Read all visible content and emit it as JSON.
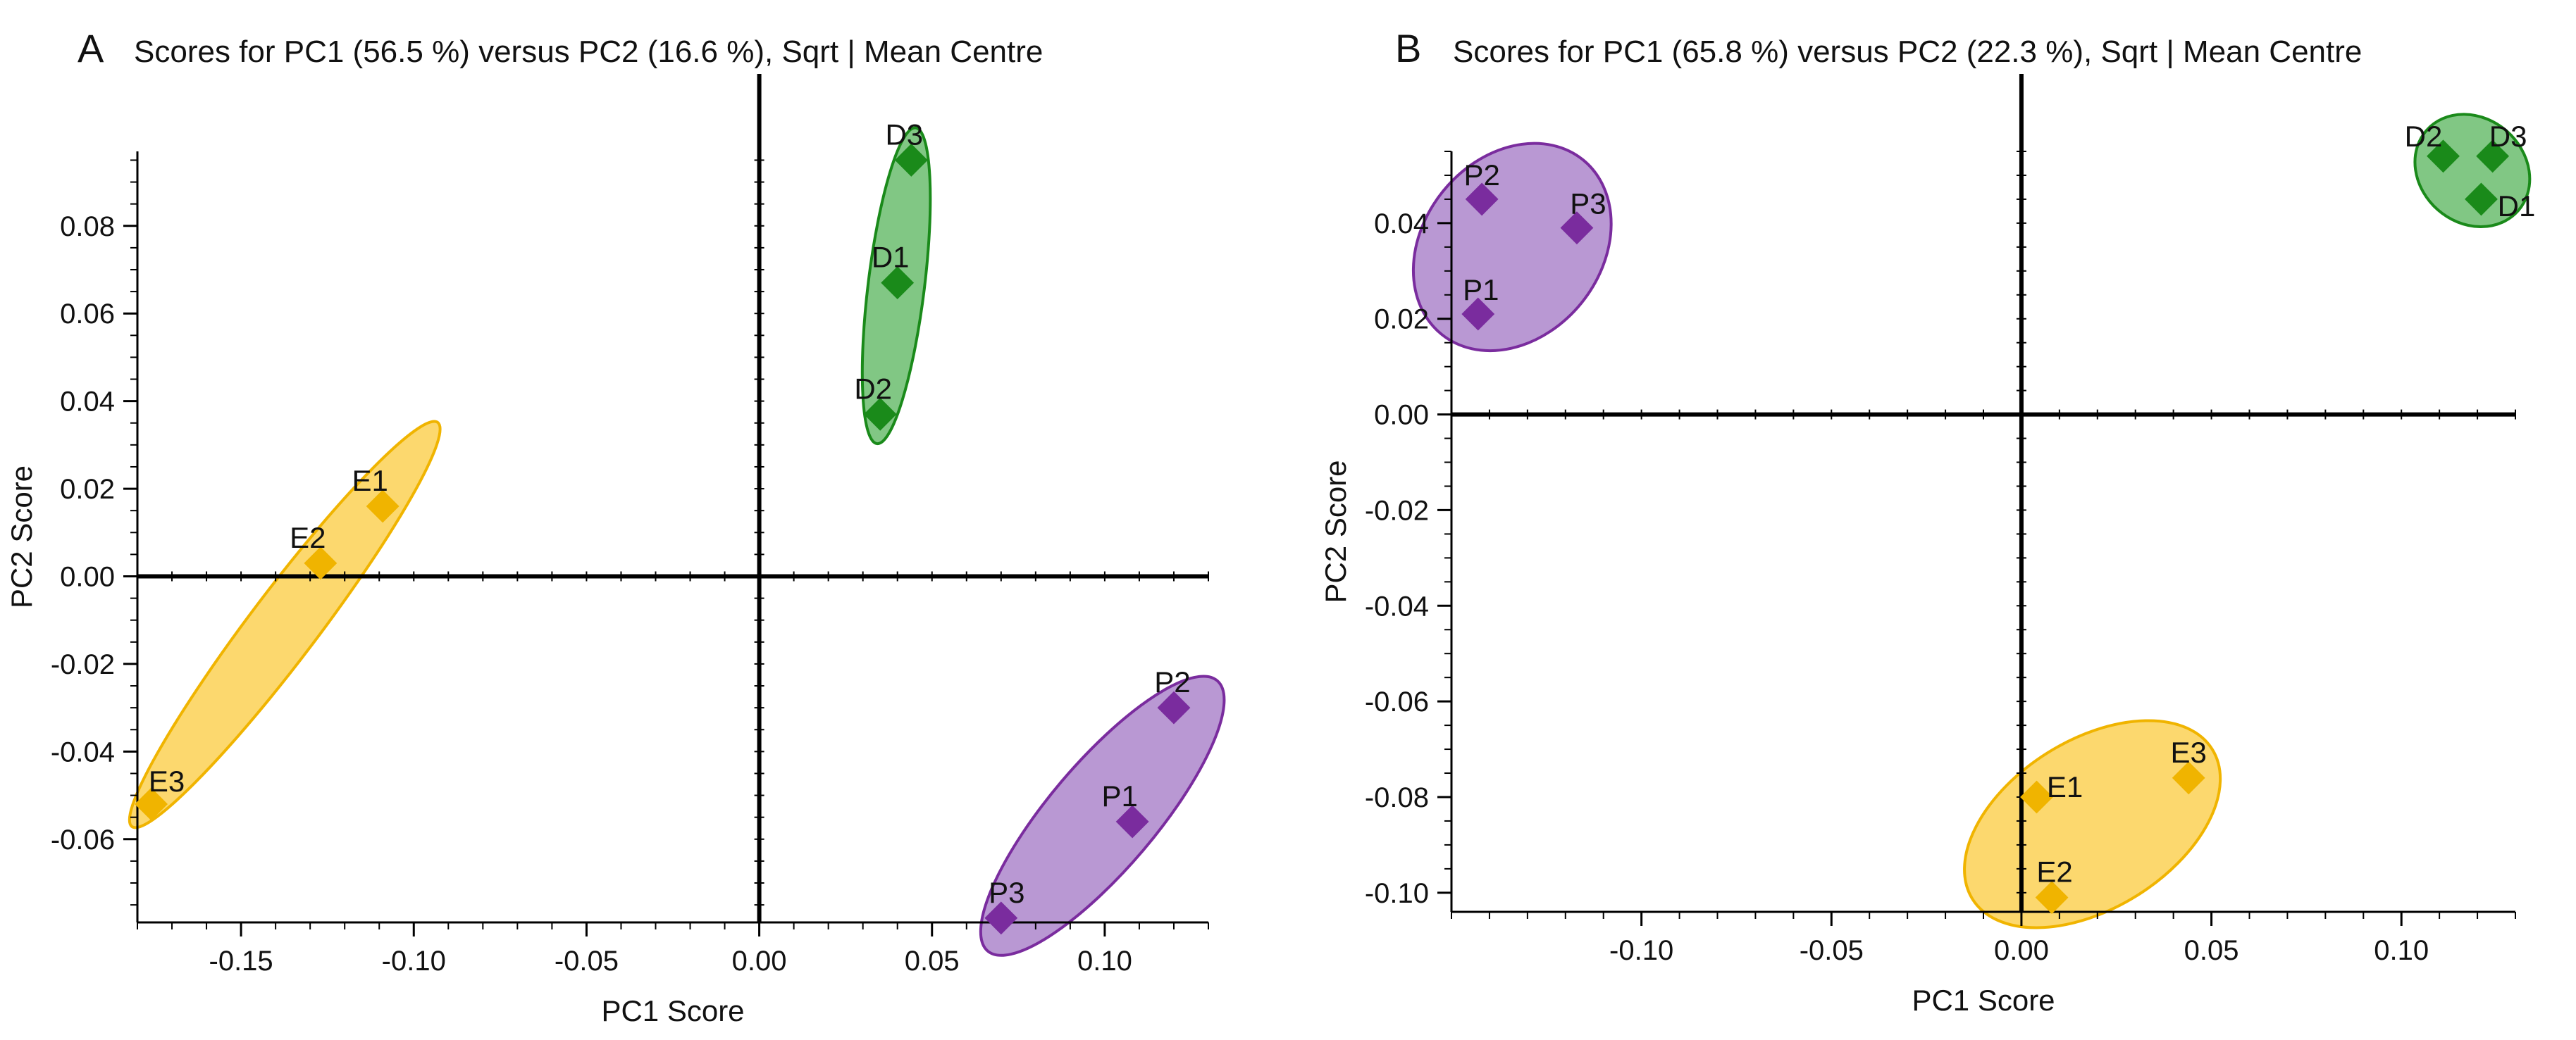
{
  "chart_data": [
    {
      "type": "scatter",
      "panel_label": "A",
      "title": "Scores for PC1 (56.5 %) versus PC2 (16.6 %), Sqrt | Mean Centre",
      "xlabel": "PC1 Score",
      "ylabel": "PC2 Score",
      "xlim": [
        -0.18,
        0.13
      ],
      "ylim": [
        -0.079,
        0.097
      ],
      "xticks": [
        -0.15,
        -0.1,
        -0.05,
        0.0,
        0.05,
        0.1
      ],
      "xtick_labels": [
        "-0.15",
        "-0.10",
        "-0.05",
        "0.00",
        "0.05",
        "0.10"
      ],
      "yticks": [
        -0.06,
        -0.04,
        -0.02,
        0.0,
        0.02,
        0.04,
        0.06,
        0.08
      ],
      "ytick_labels": [
        "-0.06",
        "-0.04",
        "-0.02",
        "0.00",
        "0.02",
        "0.04",
        "0.06",
        "0.08"
      ],
      "grid": false,
      "zero_lines": true,
      "groups": [
        {
          "color": "#1a8a1a",
          "fill": "#4caf50",
          "points": [
            {
              "label": "D3",
              "x": 0.044,
              "y": 0.095
            },
            {
              "label": "D1",
              "x": 0.04,
              "y": 0.067
            },
            {
              "label": "D2",
              "x": 0.035,
              "y": 0.037
            }
          ]
        },
        {
          "color": "#f0b400",
          "fill": "#fbc830",
          "points": [
            {
              "label": "E1",
              "x": -0.109,
              "y": 0.016
            },
            {
              "label": "E2",
              "x": -0.127,
              "y": 0.003
            },
            {
              "label": "E3",
              "x": -0.176,
              "y": -0.052
            }
          ]
        },
        {
          "color": "#7a2c9e",
          "fill": "#9b6cc0",
          "points": [
            {
              "label": "P2",
              "x": 0.12,
              "y": -0.03
            },
            {
              "label": "P1",
              "x": 0.108,
              "y": -0.056
            },
            {
              "label": "P3",
              "x": 0.07,
              "y": -0.078
            }
          ]
        }
      ]
    },
    {
      "type": "scatter",
      "panel_label": "B",
      "title": "Scores for PC1 (65.8 %) versus PC2 (22.3 %), Sqrt | Mean Centre",
      "xlabel": "PC1 Score",
      "ylabel": "PC2 Score",
      "xlim": [
        -0.15,
        0.13
      ],
      "ylim": [
        -0.104,
        0.055
      ],
      "xticks": [
        -0.1,
        -0.05,
        0.0,
        0.05,
        0.1
      ],
      "xtick_labels": [
        "-0.10",
        "-0.05",
        "0.00",
        "0.05",
        "0.10"
      ],
      "yticks": [
        -0.1,
        -0.08,
        -0.06,
        -0.04,
        -0.02,
        0.0,
        0.02,
        0.04
      ],
      "ytick_labels": [
        "-0.10",
        "-0.08",
        "-0.06",
        "-0.04",
        "-0.02",
        "0.00",
        "0.02",
        "0.04"
      ],
      "grid": false,
      "zero_lines": true,
      "groups": [
        {
          "color": "#7a2c9e",
          "fill": "#9b6cc0",
          "points": [
            {
              "label": "P2",
              "x": -0.142,
              "y": 0.045
            },
            {
              "label": "P3",
              "x": -0.117,
              "y": 0.039
            },
            {
              "label": "P1",
              "x": -0.143,
              "y": 0.021
            }
          ]
        },
        {
          "color": "#1a8a1a",
          "fill": "#4caf50",
          "points": [
            {
              "label": "D2",
              "x": 0.111,
              "y": 0.054
            },
            {
              "label": "D3",
              "x": 0.124,
              "y": 0.054
            },
            {
              "label": "D1",
              "x": 0.121,
              "y": 0.045
            }
          ]
        },
        {
          "color": "#f0b400",
          "fill": "#fbc830",
          "points": [
            {
              "label": "E1",
              "x": 0.004,
              "y": -0.08
            },
            {
              "label": "E3",
              "x": 0.044,
              "y": -0.076
            },
            {
              "label": "E2",
              "x": 0.008,
              "y": -0.101
            }
          ]
        }
      ]
    }
  ]
}
